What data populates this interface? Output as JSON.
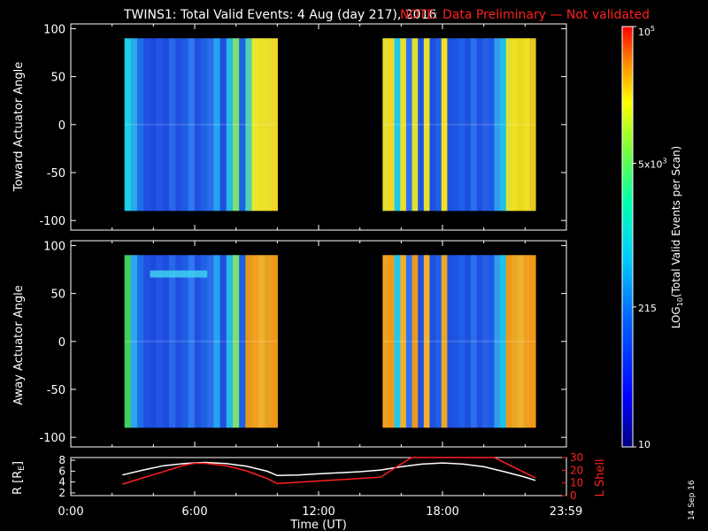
{
  "header": {
    "title": "TWINS1: Total Valid Events:  4 Aug (day 217), 2016",
    "note": "NOTE: Data Preliminary — Not validated",
    "note_color": "#ff2020"
  },
  "side_stamp": "14 Sep 16",
  "chart_data": [
    {
      "type": "heatmap",
      "name": "toward-actuator-panel",
      "ylabel": "Toward Actuator Angle",
      "ylim": [
        -110,
        105
      ],
      "yticks": [
        100,
        50,
        0,
        -50,
        -100
      ],
      "x_range_hours": [
        0,
        24
      ],
      "data_extent_y": [
        -90,
        90
      ],
      "segments": [
        {
          "start_h": 2.6,
          "end_h": 10.0
        },
        {
          "start_h": 15.1,
          "end_h": 22.5
        }
      ]
    },
    {
      "type": "heatmap",
      "name": "away-actuator-panel",
      "ylabel": "Away Actuator Angle",
      "ylim": [
        -110,
        105
      ],
      "yticks": [
        100,
        50,
        0,
        -50,
        -100
      ],
      "x_range_hours": [
        0,
        24
      ],
      "data_extent_y": [
        -90,
        90
      ],
      "segments": [
        {
          "start_h": 2.6,
          "end_h": 10.0
        },
        {
          "start_h": 15.1,
          "end_h": 22.5
        }
      ]
    },
    {
      "type": "line",
      "name": "orbit-panel",
      "ylabel_left": "R [R",
      "ylabel_left_sub": "E",
      "ylabel_left_close": "]",
      "ylabel_right": "L Shell",
      "ylim_left": [
        1.5,
        8.5
      ],
      "ylim_right": [
        0,
        30
      ],
      "yticks_left": [
        2,
        4,
        6,
        8
      ],
      "yticks_right": [
        0,
        10,
        20,
        30
      ],
      "series": [
        {
          "name": "R",
          "color": "#ffffff",
          "x": [
            2.5,
            3.5,
            4.5,
            5.5,
            6.5,
            7.5,
            8.5,
            9.5,
            10.0,
            11,
            12,
            13,
            14,
            15,
            16,
            17,
            18,
            19,
            20,
            21,
            22,
            22.5
          ],
          "values": [
            5.3,
            6.2,
            7.0,
            7.4,
            7.6,
            7.4,
            6.9,
            6.0,
            5.2,
            5.3,
            5.5,
            5.7,
            5.9,
            6.2,
            6.8,
            7.3,
            7.5,
            7.3,
            6.8,
            5.9,
            4.9,
            4.3
          ]
        },
        {
          "name": "L Shell",
          "color": "#ff2020",
          "x": [
            2.5,
            3.5,
            4.5,
            5.5,
            6.0,
            6.5,
            7.5,
            8.5,
            9.5,
            10.0,
            11,
            12,
            13,
            14,
            15,
            16,
            16.5,
            16.8,
            20.5,
            21,
            22,
            22.5
          ],
          "values": [
            9,
            14,
            19,
            24,
            25.5,
            25.5,
            23.5,
            19.5,
            13.5,
            9.5,
            10.5,
            11.5,
            12.5,
            13.5,
            14.5,
            25,
            30,
            30,
            30,
            26,
            18,
            14
          ]
        }
      ],
      "xticks": [
        "0:00",
        "6:00",
        "12:00",
        "18:00",
        "23:59"
      ],
      "xtick_hours": [
        0,
        6,
        12,
        18,
        23.98
      ],
      "xlabel": "Time (UT)"
    }
  ],
  "colorbar": {
    "label": "LOG10(Total Valid Events per Scan)",
    "label_main": "LOG",
    "label_sub": "10",
    "label_rest": "(Total Valid Events per Scan)",
    "ticks": [
      {
        "value_log": 5.0,
        "text": "10",
        "sup": "5"
      },
      {
        "value_log": 3.699,
        "text": "5x10",
        "sup": "3"
      },
      {
        "value_log": 2.332,
        "text": "215",
        "sup": ""
      },
      {
        "value_log": 1.0,
        "text": "10",
        "sup": ""
      }
    ],
    "range_log": [
      1.0,
      5.0
    ]
  }
}
